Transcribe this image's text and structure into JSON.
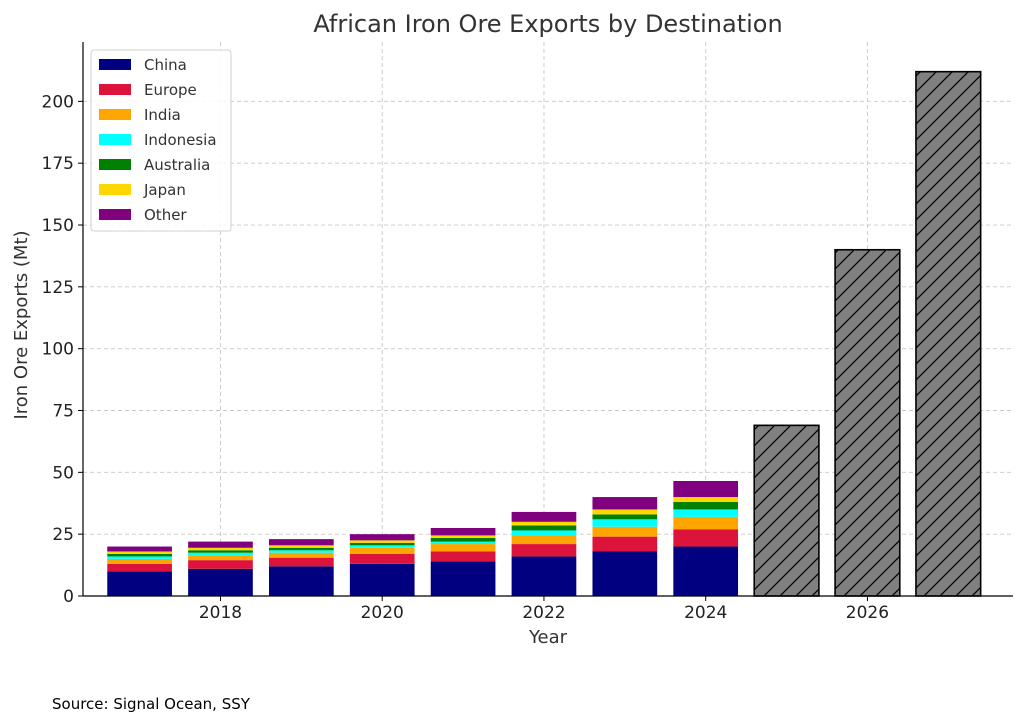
{
  "source_note": "Source: Signal Ocean, SSY",
  "chart_data": {
    "type": "bar",
    "stacked": true,
    "title": "African Iron Ore Exports by Destination",
    "xlabel": "Year",
    "ylabel": "Iron Ore Exports (Mt)",
    "xlim": [
      2016.3,
      2027.8
    ],
    "ylim": [
      0,
      224
    ],
    "x_ticks": [
      2018,
      2020,
      2022,
      2024,
      2026
    ],
    "y_ticks": [
      0,
      25,
      50,
      75,
      100,
      125,
      150,
      175,
      200
    ],
    "grid": true,
    "legend_position": "top-left",
    "years": [
      2017,
      2018,
      2019,
      2020,
      2021,
      2022,
      2023,
      2024
    ],
    "series": [
      {
        "name": "China",
        "color": "#000080",
        "values": [
          10,
          11,
          12,
          13,
          14,
          16,
          18,
          20
        ]
      },
      {
        "name": "Europe",
        "color": "#dc143c",
        "values": [
          3,
          3.5,
          3.5,
          4,
          4,
          5,
          6,
          7
        ]
      },
      {
        "name": "India",
        "color": "#ffa500",
        "values": [
          2,
          2,
          2,
          2.5,
          3,
          3.5,
          4,
          5
        ]
      },
      {
        "name": "Indonesia",
        "color": "#00ffff",
        "values": [
          1,
          1,
          1,
          1,
          1,
          2,
          3,
          3
        ]
      },
      {
        "name": "Australia",
        "color": "#008000",
        "values": [
          1,
          1,
          1,
          1,
          1.5,
          2,
          2,
          3
        ]
      },
      {
        "name": "Japan",
        "color": "#ffd700",
        "values": [
          1,
          1,
          1,
          1,
          1,
          1.5,
          2,
          2
        ]
      },
      {
        "name": "Other",
        "color": "#800080",
        "values": [
          2,
          2.5,
          2.5,
          2.5,
          3,
          4,
          5,
          6.5
        ]
      }
    ],
    "projections": {
      "color": "#808080",
      "hatch": "diagonal",
      "years": [
        2025,
        2026,
        2027
      ],
      "values": [
        69,
        140,
        212
      ]
    }
  }
}
